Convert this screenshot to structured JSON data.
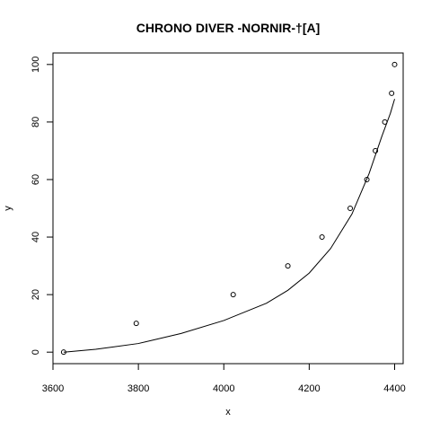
{
  "chart_data": {
    "type": "scatter",
    "title": "CHRONO DIVER -NORNIR-†[A]",
    "xlabel": "x",
    "ylabel": "y",
    "xlim": [
      3600,
      4420
    ],
    "ylim": [
      -4,
      104
    ],
    "x_ticks": [
      3600,
      3800,
      4000,
      4200,
      4400
    ],
    "y_ticks": [
      0,
      20,
      40,
      60,
      80,
      100
    ],
    "grid": false,
    "points": {
      "x": [
        3625,
        3795,
        4022,
        4150,
        4230,
        4296,
        4335,
        4355,
        4377,
        4393,
        4400
      ],
      "y": [
        0,
        10,
        20,
        30,
        40,
        50,
        60,
        70,
        80,
        90,
        100
      ]
    },
    "fit_curve": {
      "x": [
        3625,
        3700,
        3800,
        3900,
        4000,
        4100,
        4150,
        4200,
        4250,
        4300,
        4340,
        4370,
        4390,
        4400
      ],
      "y": [
        0,
        1,
        3,
        6.5,
        11,
        17,
        21.5,
        27.5,
        36,
        48,
        62,
        75,
        83,
        88
      ]
    }
  }
}
